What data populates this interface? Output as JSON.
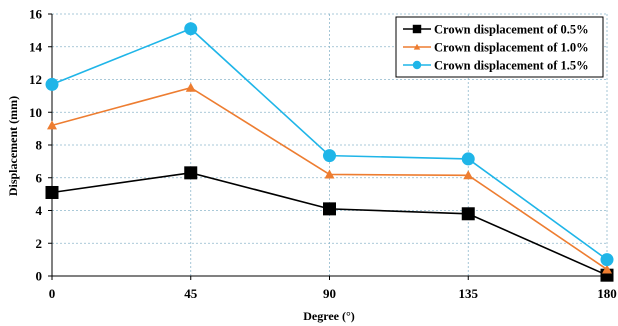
{
  "chart_data": {
    "type": "line",
    "x": [
      0,
      45,
      90,
      135,
      180
    ],
    "xlabel": "Degree (°)",
    "ylabel": "Displacement (mm)",
    "ylim": [
      0,
      16
    ],
    "yticks": [
      0,
      2,
      4,
      6,
      8,
      10,
      12,
      14,
      16
    ],
    "xticks": [
      0,
      45,
      90,
      135,
      180
    ],
    "grid": "horizontal and vertical dashed",
    "legend_position": "top-right",
    "series": [
      {
        "name": "Crown displacement of 0.5%",
        "values": [
          5.1,
          6.3,
          4.1,
          3.8,
          0.05
        ],
        "color": "#000000",
        "marker": "square"
      },
      {
        "name": "Crown displacement of 1.0%",
        "values": [
          9.2,
          11.5,
          6.2,
          6.15,
          0.4
        ],
        "color": "#ED7D31",
        "marker": "triangle"
      },
      {
        "name": "Crown displacement of 1.5%",
        "values": [
          11.7,
          15.1,
          7.35,
          7.15,
          1.0
        ],
        "color": "#1FB5E8",
        "marker": "circle"
      }
    ]
  }
}
